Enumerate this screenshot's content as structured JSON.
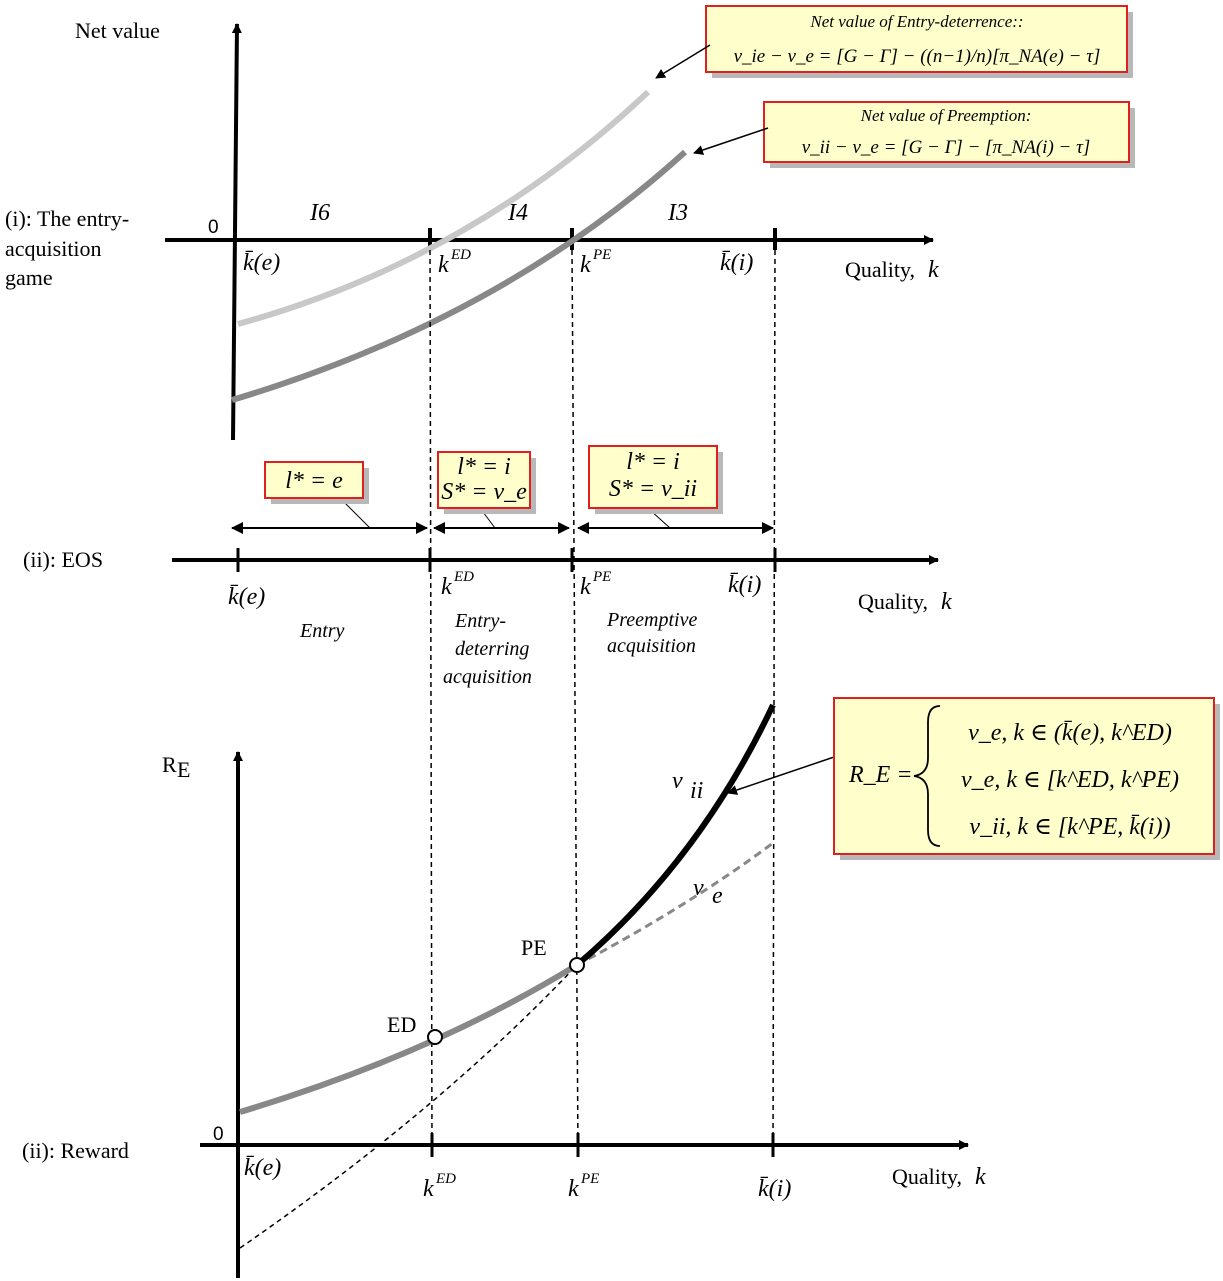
{
  "colors": {
    "box_fill": "#ffffcc",
    "box_border": "#e02020",
    "light_curve": "#c8c8c8",
    "mid_curve": "#888888",
    "dark": "#000000"
  },
  "panel_i": {
    "y_label": "Net value",
    "row_label": [
      "(i): The entry-",
      "acquisition",
      "game"
    ],
    "origin": "0",
    "x_axis_label": "Quality, ",
    "x_axis_var": "k",
    "regions": [
      "I6",
      "I4",
      "I3"
    ],
    "box_entry_title": "Net value of Entry-deterrence::",
    "box_entry_formula": "v_ie − v_e = [G − Γ] − ((n−1)/n)[π_NA(e) − τ]",
    "box_pre_title": "Net value of Preemption:",
    "box_pre_formula": "v_ii − v_e = [G − Γ] − [π_NA(i) − τ]"
  },
  "panel_eos": {
    "row_label": "(ii): EOS",
    "x_axis_label": "Quality, ",
    "x_axis_var": "k",
    "box1": "l* = e",
    "box2": [
      "l* = i",
      "S* = v_e"
    ],
    "box3": [
      "l* = i",
      "S* = v_ii"
    ],
    "regime1": [
      "Entry"
    ],
    "regime2": [
      "Entry-",
      "deterring",
      "acquisition"
    ],
    "regime3": [
      "Preemptive",
      "acquisition"
    ]
  },
  "panel_reward": {
    "row_label": "(ii): Reward",
    "y_label": "R",
    "y_label_sub": "E",
    "origin": "0",
    "x_axis_label": "Quality, ",
    "x_axis_var": "k",
    "point_ed": "ED",
    "point_pe": "PE",
    "curve_vii": "v",
    "curve_vii_sub": "ii",
    "curve_ve": "v",
    "curve_ve_sub": "e",
    "brace_lhs": "R_E =",
    "brace_rows": [
      "v_e, k ∈ (k̄(e), k^ED)",
      "v_e, k ∈ [k^ED, k^PE)",
      "v_ii, k ∈ [k^PE, k̄(i))"
    ]
  },
  "ticks": {
    "k_bar_e": "k̄(e)",
    "k_ed": "k",
    "k_ed_sup": "ED",
    "k_pe": "k",
    "k_pe_sup": "PE",
    "k_bar_i": "k̄(i)"
  }
}
